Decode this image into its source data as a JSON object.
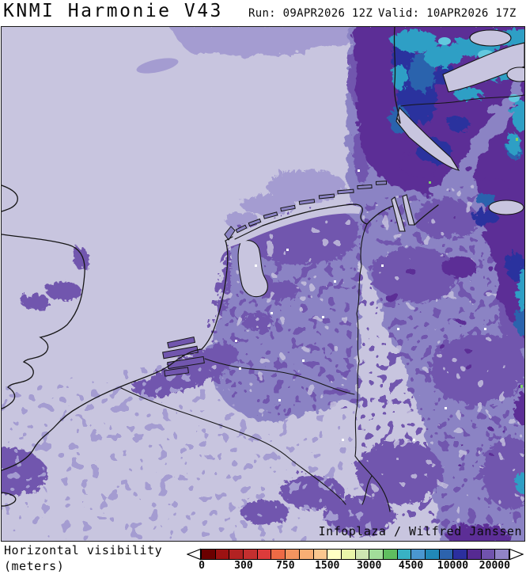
{
  "header": {
    "title": "KNMI Harmonie V43",
    "run_label": "Run: 09APR2026 12Z",
    "valid_label": "Valid: 10APR2026 17Z"
  },
  "map": {
    "attribution": "Infoplaza / Wilfred Janssen",
    "palette": {
      "sea_clear": "#c8c5df",
      "light_band": "#a49cd1",
      "medium_purple": "#8b83c4",
      "deep_purple": "#7156ae",
      "dark_purple": "#5c2d96",
      "indigo": "#2b319e",
      "blue": "#2c63ad",
      "teal_blue": "#2f9fc5",
      "cyan": "#41b8d6",
      "speck_green": "#7ed06a",
      "coastline": "#161616"
    }
  },
  "legend": {
    "label_line1": "Horizontal visibility",
    "label_line2": "(meters)",
    "ticks": [
      "0",
      "300",
      "750",
      "1500",
      "3000",
      "4500",
      "10000",
      "20000"
    ],
    "tick_step_cells": 3,
    "colors": [
      "#6b0000",
      "#9c1212",
      "#b22222",
      "#c42f2f",
      "#dd3b3b",
      "#ee6a45",
      "#f5945f",
      "#f9ae74",
      "#fbc78f",
      "#ffffc4",
      "#e9f6a9",
      "#cfe6b2",
      "#a2dd9a",
      "#5fbe5f",
      "#38b2c4",
      "#4a97d0",
      "#2189b8",
      "#2c63ad",
      "#2b2f9e",
      "#562a92",
      "#7053ad",
      "#9184c6"
    ]
  }
}
